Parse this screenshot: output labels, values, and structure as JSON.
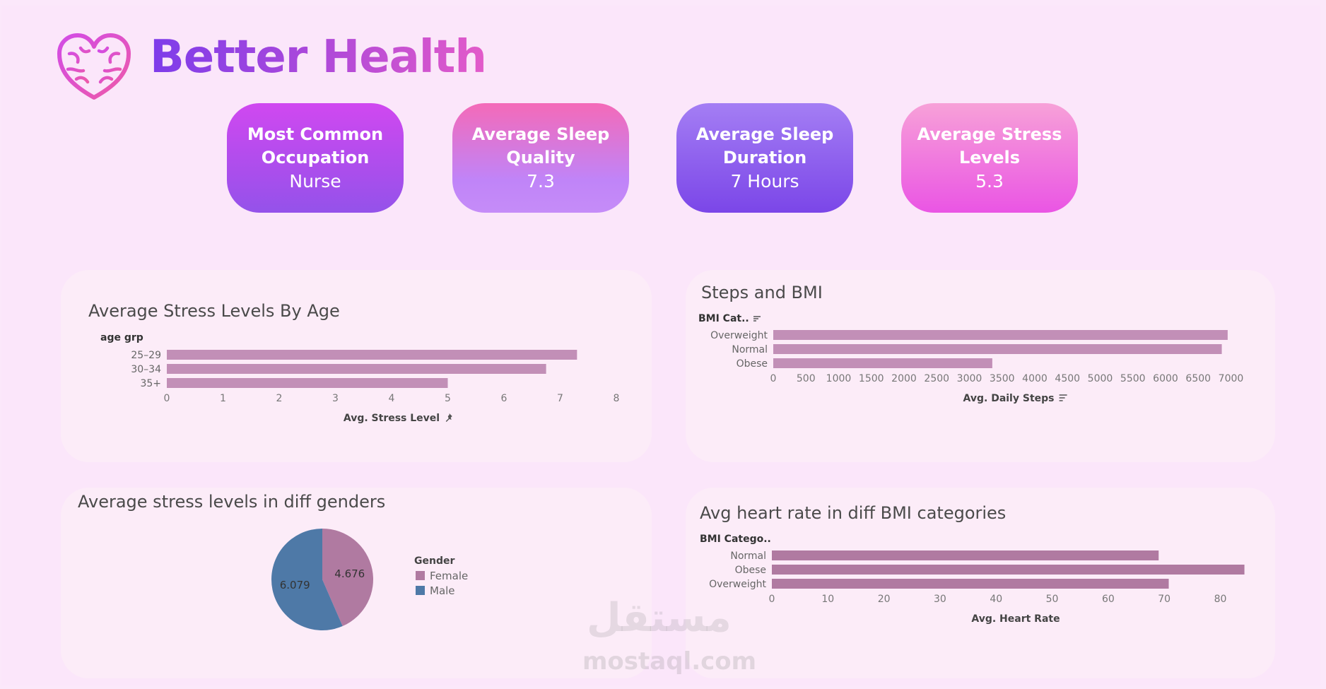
{
  "header": {
    "title": "Better Health",
    "logo_icon": "brain-heart-icon"
  },
  "kpis": [
    {
      "title": "Most Common Occupation",
      "value": "Nurse"
    },
    {
      "title": "Average Sleep Quality",
      "value": "7.3"
    },
    {
      "title": "Average Sleep Duration",
      "value": "7 Hours"
    },
    {
      "title": "Average Stress Levels",
      "value": "5.3"
    }
  ],
  "colors": {
    "bar": "#c28fb7",
    "bar_dark": "#b07aa1",
    "female": "#b07aa1",
    "male": "#4e79a7",
    "axis_text": "#666666"
  },
  "watermark": {
    "latin": "mostaql.com",
    "arabic": "مستقل"
  },
  "chart_data": [
    {
      "type": "bar",
      "orientation": "horizontal",
      "title": "Average Stress Levels By Age",
      "field_label": "age grp",
      "categories": [
        "25–29",
        "30–34",
        "35+"
      ],
      "values": [
        7.3,
        6.75,
        5.0
      ],
      "xlim": [
        0,
        8
      ],
      "ticks": [
        0,
        1,
        2,
        3,
        4,
        5,
        6,
        7,
        8
      ],
      "xlabel": "Avg. Stress Level",
      "xlabel_icon": "pin-icon"
    },
    {
      "type": "bar",
      "orientation": "horizontal",
      "title": "Steps and BMI",
      "field_label": "BMI Cat..",
      "categories": [
        "Overweight",
        "Normal",
        "Obese"
      ],
      "values": [
        6950,
        6860,
        3350
      ],
      "xlim": [
        0,
        7200
      ],
      "ticks": [
        0,
        500,
        1000,
        1500,
        2000,
        2500,
        3000,
        3500,
        4000,
        4500,
        5000,
        5500,
        6000,
        6500,
        7000
      ],
      "xlabel": "Avg. Daily Steps",
      "xlabel_icon": "sort-icon",
      "field_icon": "sort-icon"
    },
    {
      "type": "pie",
      "title": "Average stress levels in diff genders",
      "legend_title": "Gender",
      "slices": [
        {
          "label": "Female",
          "value": 4.676,
          "display": "4.676"
        },
        {
          "label": "Male",
          "value": 6.079,
          "display": "6.079"
        }
      ],
      "legend_position": "right"
    },
    {
      "type": "bar",
      "orientation": "horizontal",
      "title": "Avg heart rate in diff BMI categories",
      "field_label": "BMI Catego..",
      "categories": [
        "Normal",
        "Obese",
        "Overweight"
      ],
      "values": [
        69,
        84.3,
        70.8
      ],
      "xlim": [
        0,
        87
      ],
      "ticks": [
        0,
        10,
        20,
        30,
        40,
        50,
        60,
        70,
        80
      ],
      "xlabel": "Avg. Heart Rate"
    }
  ]
}
